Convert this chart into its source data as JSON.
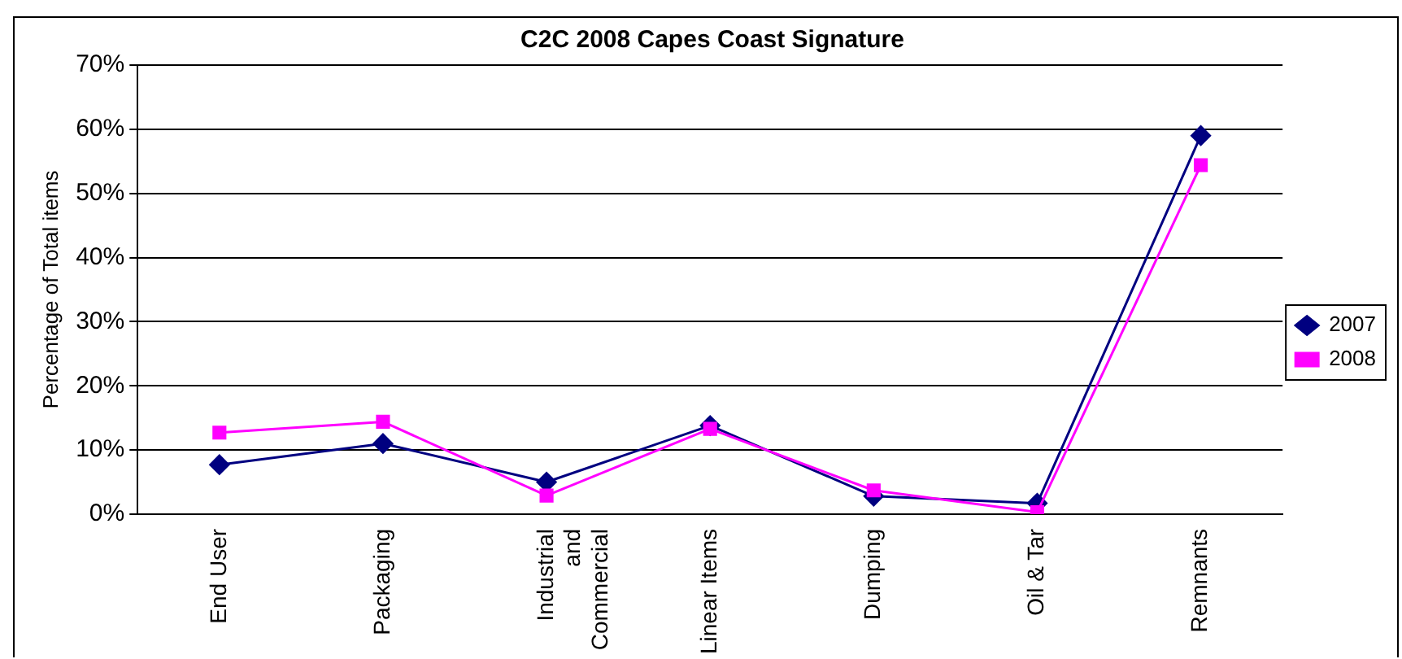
{
  "chart_data": {
    "type": "line",
    "title": "C2C 2008 Capes Coast Signature",
    "ylabel": "Percentage of Total items",
    "categories": [
      "End User",
      "Packaging",
      "Industrial and Commercial",
      "Linear Items",
      "Dumping",
      "Oil & Tar",
      "Remnants"
    ],
    "series": [
      {
        "name": "2007",
        "color": "#000080",
        "marker": "diamond",
        "values": [
          7.7,
          11,
          5,
          13.8,
          2.8,
          1.7,
          59
        ]
      },
      {
        "name": "2008",
        "color": "#ff00ff",
        "marker": "square",
        "values": [
          12.7,
          14.4,
          2.9,
          13.3,
          3.7,
          0.3,
          54.4
        ]
      }
    ],
    "ylim": [
      0,
      70
    ],
    "yticks": [
      {
        "value": 0,
        "label": "0%"
      },
      {
        "value": 10,
        "label": "10%"
      },
      {
        "value": 20,
        "label": "20%"
      },
      {
        "value": 30,
        "label": "30%"
      },
      {
        "value": 40,
        "label": "40%"
      },
      {
        "value": 50,
        "label": "50%"
      },
      {
        "value": 60,
        "label": "60%"
      },
      {
        "value": 70,
        "label": "70%"
      }
    ],
    "grid": "y",
    "legend": "right",
    "line_style": "solid"
  }
}
